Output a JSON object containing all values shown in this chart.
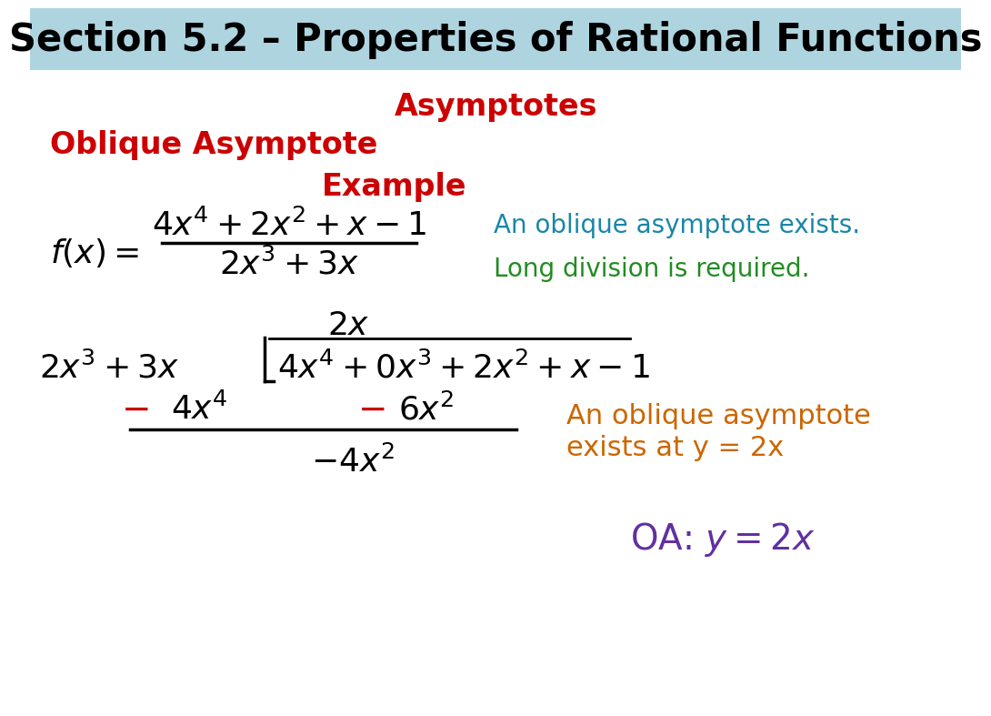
{
  "title": "Section 5.2 – Properties of Rational Functions",
  "title_bg": "#aed4e0",
  "title_color": "#000000",
  "title_fontsize": 30,
  "asymptotes_label": "Asymptotes",
  "asymptotes_color": "#cc0000",
  "asymptotes_fontsize": 24,
  "oblique_label": "Oblique Asymptote",
  "oblique_color": "#cc0000",
  "oblique_fontsize": 24,
  "example_label": "Example",
  "example_color": "#cc0000",
  "example_fontsize": 24,
  "blue_note": "An oblique asymptote exists.",
  "blue_color": "#1a86a8",
  "green_note": "Long division is required.",
  "green_color": "#228b22",
  "orange_note1": "An oblique asymptote",
  "orange_note2": "exists at y = 2x",
  "orange_color": "#cc6600",
  "orange_fontsize": 22,
  "purple_color": "#6030a0",
  "bg_color": "#ffffff",
  "math_fontsize": 26,
  "note_fontsize": 20
}
